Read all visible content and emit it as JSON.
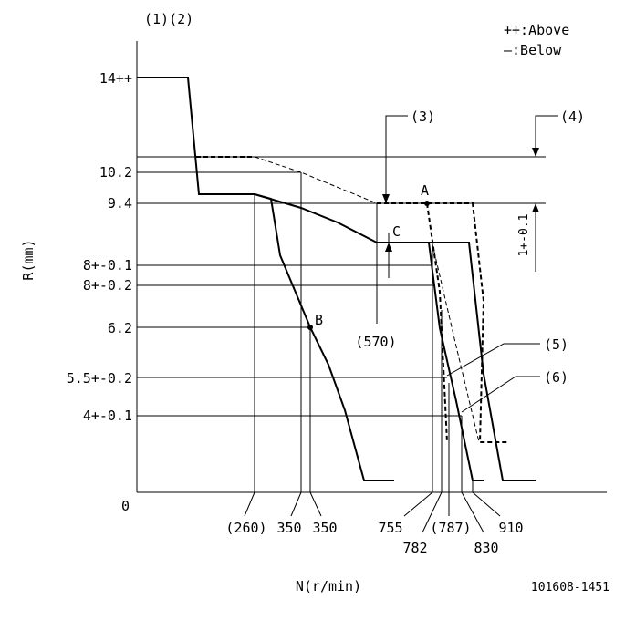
{
  "header": {
    "ref_numbers": "(1)(2)",
    "legend_above": "++:Above",
    "legend_below": "—:Below"
  },
  "axes": {
    "y_label": "R(mm)",
    "x_label": "N(r/min)",
    "origin": "0"
  },
  "y_ticks": [
    "14++",
    "10.2",
    "9.4",
    "8+-0.1",
    "8+-0.2",
    "6.2",
    "5.5+-0.2",
    "4+-0.1"
  ],
  "x_ticks": [
    "(260)",
    "350",
    "350",
    "755",
    "782",
    "(787)",
    "830",
    "910"
  ],
  "callouts": {
    "c3": "(3)",
    "c4": "(4)",
    "c5": "(5)",
    "c6": "(6)",
    "c570": "(570)",
    "tolerance": "1+-0.1"
  },
  "points": {
    "a": "A",
    "b": "B",
    "c": "C"
  },
  "drawing_number": "101608-1451"
}
